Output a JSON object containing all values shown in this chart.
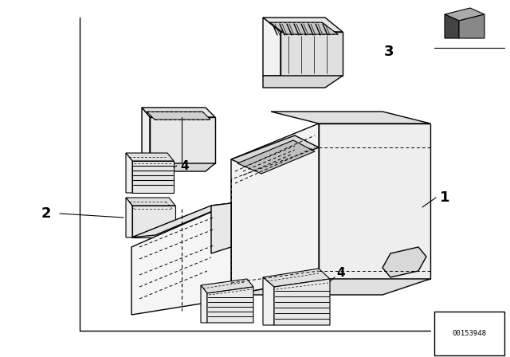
{
  "bg_color": "#ffffff",
  "line_color": "#000000",
  "part_id_code": "00153948"
}
